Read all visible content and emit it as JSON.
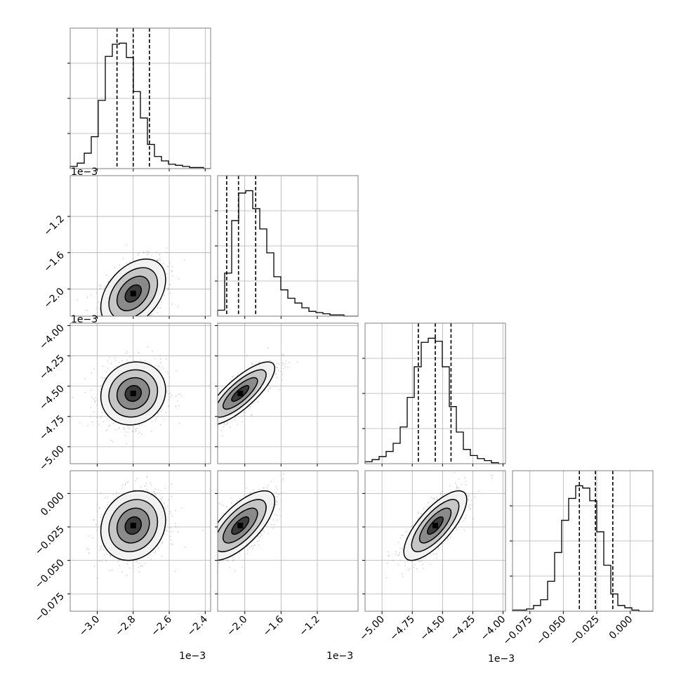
{
  "chart_data": {
    "type": "corner",
    "params": 4,
    "histogram_style": "step",
    "grid": true,
    "colors": {
      "line": "#000000",
      "scatter": "#808080",
      "grid": "#b0b0b0",
      "frame": "#808080"
    },
    "axes": [
      {
        "index": 0,
        "range": [
          -3.15,
          -2.37
        ],
        "ticks": [
          {
            "v": -3.0,
            "label": "−3.0"
          },
          {
            "v": -2.8,
            "label": "−2.8"
          },
          {
            "v": -2.6,
            "label": "−2.6"
          },
          {
            "v": -2.4,
            "label": "−2.4"
          }
        ],
        "exponent": "1e−3",
        "quantiles": [
          -2.89,
          -2.8,
          -2.71
        ],
        "hist_counts": [
          2,
          5,
          14,
          29,
          62,
          102,
          113,
          114,
          101,
          70,
          46,
          22,
          11,
          7,
          4,
          3,
          2,
          1,
          1,
          0
        ]
      },
      {
        "index": 1,
        "range": [
          -2.3,
          -0.75
        ],
        "ticks": [
          {
            "v": -2.0,
            "label": "−2.0"
          },
          {
            "v": -1.6,
            "label": "−1.6"
          },
          {
            "v": -1.2,
            "label": "−1.2"
          }
        ],
        "exponent": "1e−3",
        "quantiles": [
          -2.2,
          -2.07,
          -1.88
        ],
        "hist_counts": [
          5,
          36,
          80,
          103,
          105,
          90,
          73,
          53,
          33,
          22,
          15,
          11,
          7,
          4,
          3,
          2,
          1,
          1,
          0,
          0
        ]
      },
      {
        "index": 2,
        "range": [
          -5.14,
          -3.98
        ],
        "ticks": [
          {
            "v": -5.0,
            "label": "−5.00"
          },
          {
            "v": -4.75,
            "label": "−4.75"
          },
          {
            "v": -4.5,
            "label": "−4.50"
          },
          {
            "v": -4.25,
            "label": "−4.25"
          },
          {
            "v": -4.0,
            "label": "−4.00"
          }
        ],
        "exponent": "1e−3",
        "quantiles": [
          -4.7,
          -4.56,
          -4.43
        ],
        "hist_counts": [
          2,
          4,
          7,
          12,
          20,
          36,
          65,
          95,
          119,
          123,
          120,
          95,
          56,
          31,
          14,
          8,
          5,
          3,
          1,
          0
        ]
      },
      {
        "index": 3,
        "range": [
          -0.088,
          0.017
        ],
        "ticks": [
          {
            "v": -0.075,
            "label": "−0.075"
          },
          {
            "v": -0.05,
            "label": "−0.050"
          },
          {
            "v": -0.025,
            "label": "−0.025"
          },
          {
            "v": 0.0,
            "label": "0.000"
          }
        ],
        "exponent": "",
        "quantiles": [
          -0.038,
          -0.026,
          -0.013
        ],
        "hist_counts": [
          1,
          1,
          2,
          5,
          10,
          26,
          51,
          79,
          98,
          109,
          107,
          96,
          69,
          40,
          15,
          5,
          3,
          1,
          0,
          0
        ]
      }
    ],
    "correlations": [
      {
        "row": 1,
        "col": 0,
        "mean": [
          -2.8,
          -2.05
        ],
        "sd": [
          0.09,
          0.19
        ],
        "rho": 0.4
      },
      {
        "row": 2,
        "col": 0,
        "mean": [
          -2.8,
          -4.56
        ],
        "sd": [
          0.09,
          0.13
        ],
        "rho": 0.1
      },
      {
        "row": 2,
        "col": 1,
        "mean": [
          -2.05,
          -4.56
        ],
        "sd": [
          0.19,
          0.13
        ],
        "rho": 0.8
      },
      {
        "row": 3,
        "col": 0,
        "mean": [
          -2.8,
          -0.024
        ],
        "sd": [
          0.09,
          0.013
        ],
        "rho": 0.15
      },
      {
        "row": 3,
        "col": 1,
        "mean": [
          -2.05,
          -0.024
        ],
        "sd": [
          0.19,
          0.013
        ],
        "rho": 0.7
      },
      {
        "row": 3,
        "col": 2,
        "mean": [
          -4.56,
          -0.024
        ],
        "sd": [
          0.13,
          0.013
        ],
        "rho": 0.75
      }
    ],
    "contour_levels": [
      "0.5σ",
      "1σ",
      "1.5σ",
      "2σ"
    ]
  }
}
